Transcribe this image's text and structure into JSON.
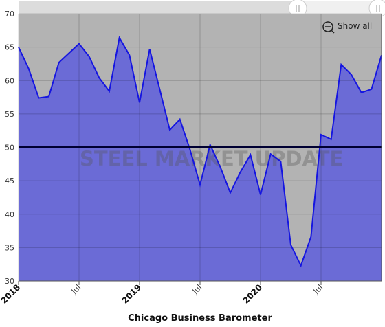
{
  "chart_data": {
    "type": "area",
    "title": "Chicago Business Barometer",
    "watermark": "STEEL MARKET UPDATE",
    "button": "Show all",
    "x": [
      "2018-01",
      "2018-02",
      "2018-03",
      "2018-04",
      "2018-05",
      "2018-06",
      "2018-07",
      "2018-08",
      "2018-09",
      "2018-10",
      "2018-11",
      "2018-12",
      "2019-01",
      "2019-02",
      "2019-03",
      "2019-04",
      "2019-05",
      "2019-06",
      "2019-07",
      "2019-08",
      "2019-09",
      "2019-10",
      "2019-11",
      "2019-12",
      "2020-01",
      "2020-02",
      "2020-03",
      "2020-04",
      "2020-05",
      "2020-06",
      "2020-07",
      "2020-08",
      "2020-09",
      "2020-10",
      "2020-11",
      "2020-12",
      "2021-01"
    ],
    "series": [
      {
        "name": "Chicago Business Barometer",
        "color": "#1515e0",
        "fill": "#6b6bd6",
        "values": [
          65.0,
          61.8,
          57.4,
          57.6,
          62.7,
          64.1,
          65.5,
          63.6,
          60.4,
          58.4,
          66.4,
          63.8,
          56.7,
          64.7,
          58.7,
          52.6,
          54.2,
          49.7,
          44.4,
          50.4,
          47.1,
          43.2,
          46.3,
          48.9,
          42.9,
          49.0,
          47.9,
          35.4,
          32.3,
          36.6,
          51.9,
          51.2,
          62.4,
          60.9,
          58.2,
          58.7,
          63.8
        ]
      }
    ],
    "reference_line": {
      "value": 50,
      "color": "#000033"
    },
    "xlim": [
      "2018-01",
      "2021-01"
    ],
    "xticks": [
      {
        "value": "2018-01",
        "label": "2018"
      },
      {
        "value": "2018-07",
        "label": "Jul"
      },
      {
        "value": "2019-01",
        "label": "2019"
      },
      {
        "value": "2019-07",
        "label": "Jul"
      },
      {
        "value": "2020-01",
        "label": "2020"
      },
      {
        "value": "2020-07",
        "label": "Jul"
      }
    ],
    "ylim": [
      30,
      70
    ],
    "yticks": [
      30,
      35,
      40,
      45,
      50,
      55,
      60,
      65,
      70
    ],
    "grid": true,
    "background": "#b3b3b3"
  }
}
